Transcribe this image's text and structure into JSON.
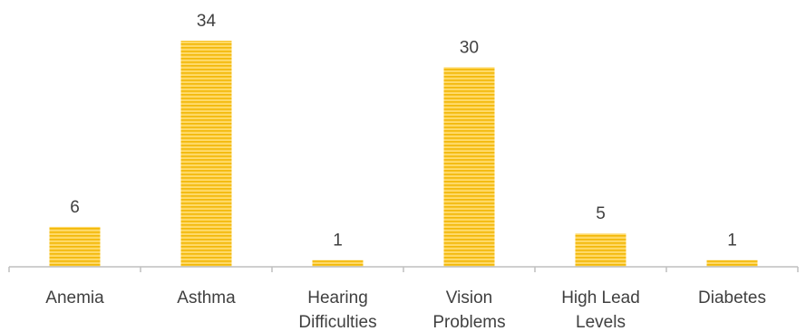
{
  "chart_data": {
    "type": "bar",
    "categories": [
      [
        "Anemia"
      ],
      [
        "Asthma"
      ],
      [
        "Hearing",
        "Difficulties"
      ],
      [
        "Vision",
        "Problems"
      ],
      [
        "High Lead",
        "Levels"
      ],
      [
        "Diabetes"
      ]
    ],
    "values": [
      6,
      34,
      1,
      30,
      5,
      1
    ],
    "data_labels": [
      "6",
      "34",
      "1",
      "30",
      "5",
      "1"
    ],
    "title": "",
    "xlabel": "",
    "ylabel": "",
    "ylim": [
      0,
      34
    ],
    "grid": false,
    "legend": "none",
    "colors": {
      "bar_fill": "#FFD966",
      "bar_stripe": "#F2B705",
      "axis": "#BFBFBF",
      "text": "#404040"
    }
  }
}
